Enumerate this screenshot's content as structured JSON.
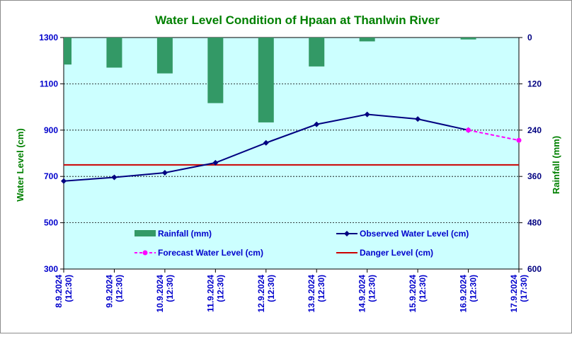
{
  "chart_data": {
    "type": "line",
    "title": "Water Level Condition of Hpaan at Thanlwin River",
    "ylabel_left": "Water Level (cm)",
    "ylabel_right": "Rainfall (mm)",
    "xlabel": "",
    "categories": [
      [
        "8.9.2024",
        "(12:30)"
      ],
      [
        "9.9.2024",
        "(12:30)"
      ],
      [
        "10.9.2024",
        "(12:30)"
      ],
      [
        "11.9.2024",
        "(12:30)"
      ],
      [
        "12.9.2024",
        "(12:30)"
      ],
      [
        "13.9.2024",
        "(12:30)"
      ],
      [
        "14.9.2024",
        "(12:30)"
      ],
      [
        "15.9.2024",
        "(12:30)"
      ],
      [
        "16.9.2024",
        "(12:30)"
      ],
      [
        "17.9.2024",
        "(17:30)"
      ]
    ],
    "ylim_left": [
      300,
      1300
    ],
    "yticks_left": [
      300,
      500,
      700,
      900,
      1100,
      1300
    ],
    "ylim_right_inverted": [
      0,
      600
    ],
    "yticks_right": [
      0,
      120,
      240,
      360,
      480,
      600
    ],
    "grid": true,
    "series": [
      {
        "name": "Rainfall (mm)",
        "kind": "bar",
        "axis": "right",
        "color": "#339966",
        "values": [
          70,
          78,
          93,
          170,
          220,
          75,
          10,
          0,
          5,
          null
        ]
      },
      {
        "name": "Observed Water Level (cm)",
        "kind": "line",
        "axis": "left",
        "color": "#000080",
        "values": [
          680,
          696,
          716,
          759,
          845,
          925,
          968,
          948,
          900,
          null
        ]
      },
      {
        "name": "Forecast Water Level (cm)",
        "kind": "line-dashed",
        "axis": "left",
        "color": "#ff00ff",
        "values": [
          null,
          null,
          null,
          null,
          null,
          null,
          null,
          null,
          900,
          856
        ]
      },
      {
        "name": "Danger Level (cm)",
        "kind": "hline",
        "axis": "left",
        "color": "#cc0000",
        "value": 750
      }
    ],
    "legend_placement": "inside-bottom",
    "colors": {
      "plot_background": "#ccffff",
      "title": "#008000",
      "left_axis_text": "#0000cc",
      "right_axis_text": "#000080",
      "x_axis_text": "#0000cc",
      "left_axis_label": "#008000",
      "right_axis_label": "#008000",
      "legend_text": "#0000cc"
    }
  }
}
